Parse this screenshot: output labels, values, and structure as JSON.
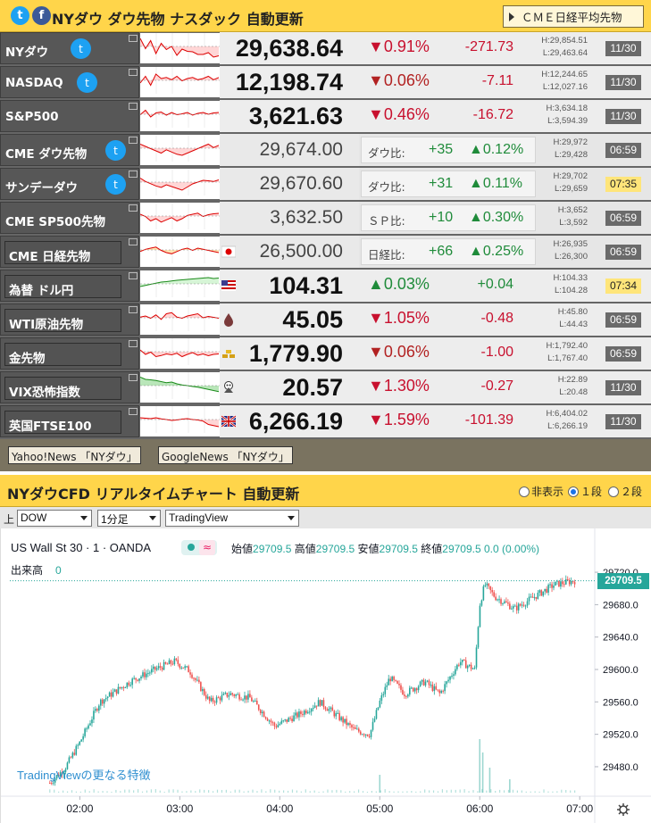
{
  "header": {
    "title": "NYダウ ダウ先物 ナスダック 自動更新",
    "twitter_glyph": "t",
    "facebook_glyph": "f",
    "cme_button": "ＣＭＥ日経平均先物"
  },
  "rows": [
    {
      "name": "NYダウ",
      "twitter": true,
      "value": "29,638.64",
      "pct": "▼0.91%",
      "change": "-271.73",
      "high": "H:29,854.51",
      "low": "L:29,463.64",
      "time": "11/30"
    },
    {
      "name": "NASDAQ",
      "twitter": true,
      "value": "12,198.74",
      "pct": "▼0.06%",
      "change": "-7.11",
      "high": "H:12,244.65",
      "low": "L:12,027.16",
      "time": "11/30"
    },
    {
      "name": "S&P500",
      "twitter": false,
      "value": "3,621.63",
      "pct": "▼0.46%",
      "change": "-16.72",
      "high": "H:3,634.18",
      "low": "L:3,594.39",
      "time": "11/30"
    },
    {
      "name": "CME ダウ先物",
      "twitter": true,
      "value": "29,674.00",
      "cmp_label": "ダウ比:",
      "cmp_diff": "+35",
      "cmp_pct": "▲0.12%",
      "high": "H:29,972",
      "low": "L:29,428",
      "time": "06:59"
    },
    {
      "name": "サンデーダウ",
      "twitter": true,
      "value": "29,670.60",
      "cmp_label": "ダウ比:",
      "cmp_diff": "+31",
      "cmp_pct": "▲0.11%",
      "high": "H:29,702",
      "low": "L:29,659",
      "time": "07:35"
    },
    {
      "name": "CME SP500先物",
      "twitter": false,
      "value": "3,632.50",
      "cmp_label": "ＳＰ比:",
      "cmp_diff": "+10",
      "cmp_pct": "▲0.30%",
      "high": "H:3,652",
      "low": "L:3,592",
      "time": "06:59"
    },
    {
      "name": "CME 日経先物",
      "value": "26,500.00",
      "cmp_label": "日経比:",
      "cmp_diff": "+66",
      "cmp_pct": "▲0.25%",
      "high": "H:26,935",
      "low": "L:26,300",
      "time": "06:59"
    },
    {
      "name": "為替 ドル円",
      "value": "104.31",
      "pct": "▲0.03%",
      "change": "+0.04",
      "high": "H:104.33",
      "low": "L:104.28",
      "time": "07:34"
    },
    {
      "name": "WTI原油先物",
      "value": "45.05",
      "pct": "▼1.05%",
      "change": "-0.48",
      "high": "H:45.80",
      "low": "L:44.43",
      "time": "06:59"
    },
    {
      "name": "金先物",
      "value": "1,779.90",
      "pct": "▼0.06%",
      "change": "-1.00",
      "high": "H:1,792.40",
      "low": "L:1,767.40",
      "time": "06:59"
    },
    {
      "name": "VIX恐怖指数",
      "value": "20.57",
      "pct": "▼1.30%",
      "change": "-0.27",
      "high": "H:22.89",
      "low": "L:20.48",
      "time": "11/30"
    },
    {
      "name": "英国FTSE100",
      "value": "6,266.19",
      "pct": "▼1.59%",
      "change": "-101.39",
      "high": "H:6,404.02",
      "low": "L:6,266.19",
      "time": "11/30"
    }
  ],
  "news": {
    "yahoo": "Yahoo!News 「NYダウ」",
    "google": "GoogleNews 「NYダウ」"
  },
  "section2": {
    "title": "NYダウCFD リアルタイムチャート 自動更新",
    "radio_hide": "非表示",
    "radio_one": "１段",
    "radio_two": "２段"
  },
  "controls": {
    "label": "上",
    "symbol": "DOW",
    "interval": "1分足",
    "provider": "TradingView"
  },
  "chart_data": {
    "type": "candlestick",
    "symbol_label": "US Wall St 30 · 1 · OANDA",
    "open_label": "始値",
    "open": "29709.5",
    "high_label": "高値",
    "high": "29709.5",
    "low_label": "安値",
    "low": "29709.5",
    "close_label": "終値",
    "close": "29709.5",
    "change": "0.0 (0.00%)",
    "volume_label": "出来高",
    "volume": "0",
    "current_price": "29709.5",
    "y_ticks": [
      "29720.0",
      "29680.0",
      "29640.0",
      "29600.0",
      "29560.0",
      "29520.0",
      "29480.0"
    ],
    "ylim": [
      29448,
      29730
    ],
    "x_ticks": [
      "02:00",
      "03:00",
      "04:00",
      "05:00",
      "06:00",
      "07:00"
    ],
    "tradingview_link": "TradingViewの更なる特徴",
    "colors": {
      "up": "#26a69a",
      "down": "#ef5350"
    },
    "price_path": [
      [
        1.7,
        29460
      ],
      [
        1.85,
        29478
      ],
      [
        2.0,
        29510
      ],
      [
        2.2,
        29560
      ],
      [
        2.5,
        29585
      ],
      [
        2.75,
        29600
      ],
      [
        2.95,
        29610
      ],
      [
        3.1,
        29598
      ],
      [
        3.3,
        29560
      ],
      [
        3.5,
        29570
      ],
      [
        3.7,
        29565
      ],
      [
        3.95,
        29530
      ],
      [
        4.2,
        29545
      ],
      [
        4.4,
        29560
      ],
      [
        4.6,
        29540
      ],
      [
        4.75,
        29525
      ],
      [
        4.9,
        29520
      ],
      [
        5.0,
        29560
      ],
      [
        5.1,
        29590
      ],
      [
        5.25,
        29570
      ],
      [
        5.45,
        29585
      ],
      [
        5.6,
        29570
      ],
      [
        5.8,
        29610
      ],
      [
        5.95,
        29600
      ],
      [
        6.0,
        29680
      ],
      [
        6.05,
        29705
      ],
      [
        6.15,
        29690
      ],
      [
        6.35,
        29675
      ],
      [
        6.55,
        29690
      ],
      [
        6.75,
        29705
      ],
      [
        6.95,
        29709.5
      ]
    ],
    "volume_spikes": [
      [
        5.0,
        20
      ],
      [
        6.0,
        60
      ],
      [
        6.03,
        45
      ],
      [
        6.1,
        28
      ],
      [
        6.3,
        15
      ]
    ]
  }
}
